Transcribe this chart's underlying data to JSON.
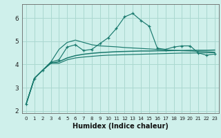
{
  "xlabel": "Humidex (Indice chaleur)",
  "ylabel": "",
  "background_color": "#cff0eb",
  "grid_color": "#aad8d0",
  "line_color": "#1a7a6e",
  "xlim": [
    -0.5,
    23.5
  ],
  "ylim": [
    1.9,
    6.6
  ],
  "yticks": [
    2,
    3,
    4,
    5,
    6
  ],
  "xticks": [
    0,
    1,
    2,
    3,
    4,
    5,
    6,
    7,
    8,
    9,
    10,
    11,
    12,
    13,
    14,
    15,
    16,
    17,
    18,
    19,
    20,
    21,
    22,
    23
  ],
  "x": [
    0,
    1,
    2,
    3,
    4,
    5,
    6,
    7,
    8,
    9,
    10,
    11,
    12,
    13,
    14,
    15,
    16,
    17,
    18,
    19,
    20,
    21,
    22,
    23
  ],
  "y_main": [
    2.3,
    3.4,
    3.75,
    4.1,
    4.2,
    4.75,
    4.85,
    4.6,
    4.65,
    4.9,
    5.15,
    5.55,
    6.05,
    6.2,
    5.9,
    5.65,
    4.7,
    4.65,
    4.75,
    4.8,
    4.8,
    4.5,
    4.4,
    4.45
  ],
  "y_upper": [
    2.3,
    3.4,
    3.75,
    4.1,
    4.65,
    4.95,
    5.05,
    4.95,
    4.85,
    4.8,
    4.78,
    4.76,
    4.73,
    4.71,
    4.69,
    4.67,
    4.65,
    4.63,
    4.61,
    4.59,
    4.58,
    4.56,
    4.55,
    4.53
  ],
  "y_lower": [
    2.3,
    3.4,
    3.75,
    4.05,
    4.05,
    4.2,
    4.28,
    4.32,
    4.35,
    4.38,
    4.4,
    4.41,
    4.42,
    4.43,
    4.44,
    4.45,
    4.46,
    4.47,
    4.48,
    4.49,
    4.49,
    4.5,
    4.5,
    4.51
  ],
  "y_trend": [
    2.3,
    3.4,
    3.75,
    4.05,
    4.12,
    4.28,
    4.38,
    4.44,
    4.48,
    4.51,
    4.53,
    4.55,
    4.56,
    4.57,
    4.58,
    4.58,
    4.59,
    4.59,
    4.6,
    4.6,
    4.61,
    4.61,
    4.61,
    4.62
  ]
}
